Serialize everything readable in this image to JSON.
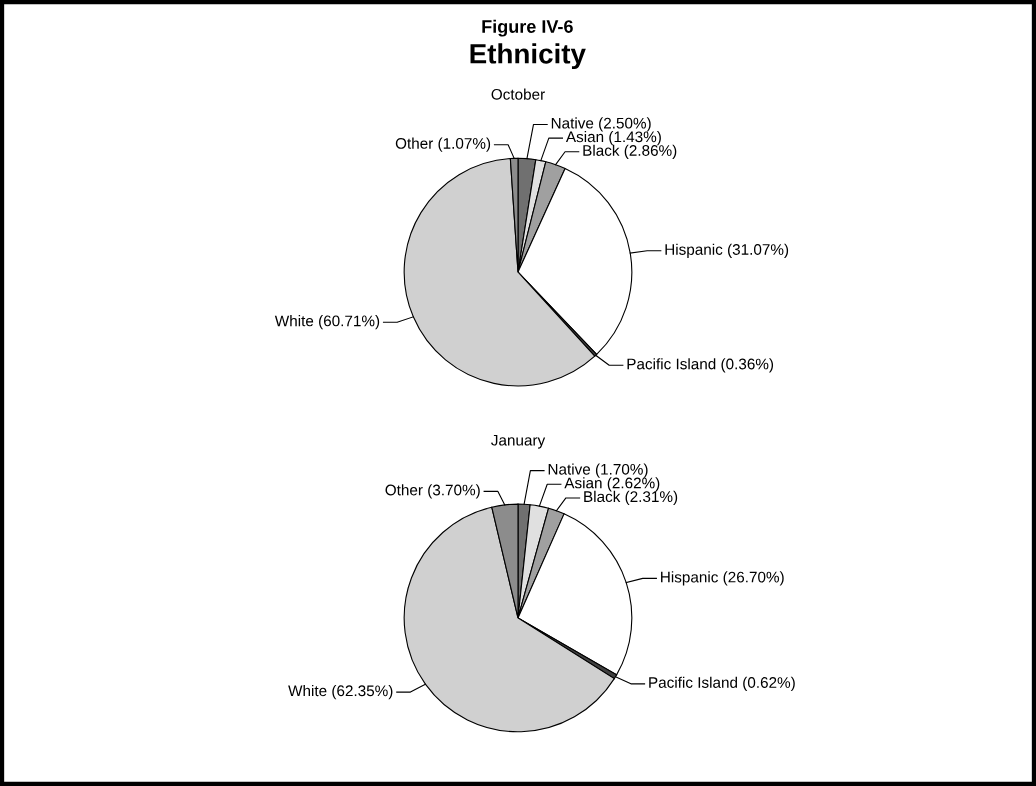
{
  "chart_data": [
    {
      "type": "pie",
      "title": "Figure IV-6",
      "subtitle": "Ethnicity",
      "annotations": [
        "October"
      ],
      "categories": [
        "Native",
        "Asian",
        "Black",
        "Hispanic",
        "Pacific Island",
        "White",
        "Other"
      ],
      "values": [
        2.5,
        1.43,
        2.86,
        31.07,
        0.36,
        60.71,
        1.07
      ],
      "value_labels": [
        "(2.50%)",
        "(1.43%)",
        "(2.86%)",
        "(31.07%)",
        "(0.36%)",
        "(60.71%)",
        "(1.07%)"
      ],
      "colors": [
        "#707070",
        "#e0e0e0",
        "#a0a0a0",
        "#ffffff",
        "#404040",
        "#d0d0d0",
        "#8c8c8c"
      ]
    },
    {
      "type": "pie",
      "annotations": [
        "January"
      ],
      "categories": [
        "Native",
        "Asian",
        "Black",
        "Hispanic",
        "Pacific Island",
        "White",
        "Other"
      ],
      "values": [
        1.7,
        2.62,
        2.31,
        26.7,
        0.62,
        62.35,
        3.7
      ],
      "value_labels": [
        "(1.70%)",
        "(2.62%)",
        "(2.31%)",
        "(26.70%)",
        "(0.62%)",
        "(62.35%)",
        "(3.70%)"
      ],
      "colors": [
        "#707070",
        "#e0e0e0",
        "#a0a0a0",
        "#ffffff",
        "#404040",
        "#d0d0d0",
        "#8c8c8c"
      ]
    }
  ]
}
